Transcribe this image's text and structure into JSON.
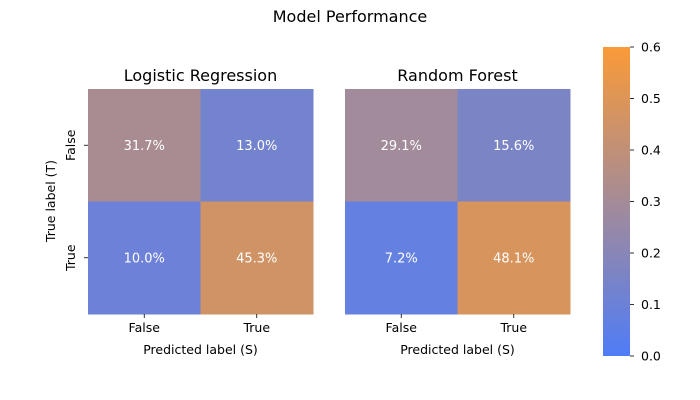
{
  "chart_data": {
    "type": "heatmap",
    "title": "Model Performance",
    "row_labels": [
      "False",
      "True"
    ],
    "col_labels": [
      "False",
      "True"
    ],
    "xlabel": "Predicted label (S)",
    "ylabel": "True label (T)",
    "colorbar": {
      "min": 0.0,
      "max": 0.6,
      "ticks": [
        "0.0",
        "0.1",
        "0.2",
        "0.3",
        "0.4",
        "0.5",
        "0.6"
      ],
      "color_low": "#4f7cf7",
      "color_high": "#fa9a37"
    },
    "panels": [
      {
        "title": "Logistic Regression",
        "values": [
          [
            0.317,
            0.13
          ],
          [
            0.1,
            0.453
          ]
        ],
        "labels": [
          [
            "31.7%",
            "13.0%"
          ],
          [
            "10.0%",
            "45.3%"
          ]
        ]
      },
      {
        "title": "Random Forest",
        "values": [
          [
            0.291,
            0.156
          ],
          [
            0.072,
            0.481
          ]
        ],
        "labels": [
          [
            "29.1%",
            "15.6%"
          ],
          [
            "7.2%",
            "48.1%"
          ]
        ]
      }
    ]
  }
}
